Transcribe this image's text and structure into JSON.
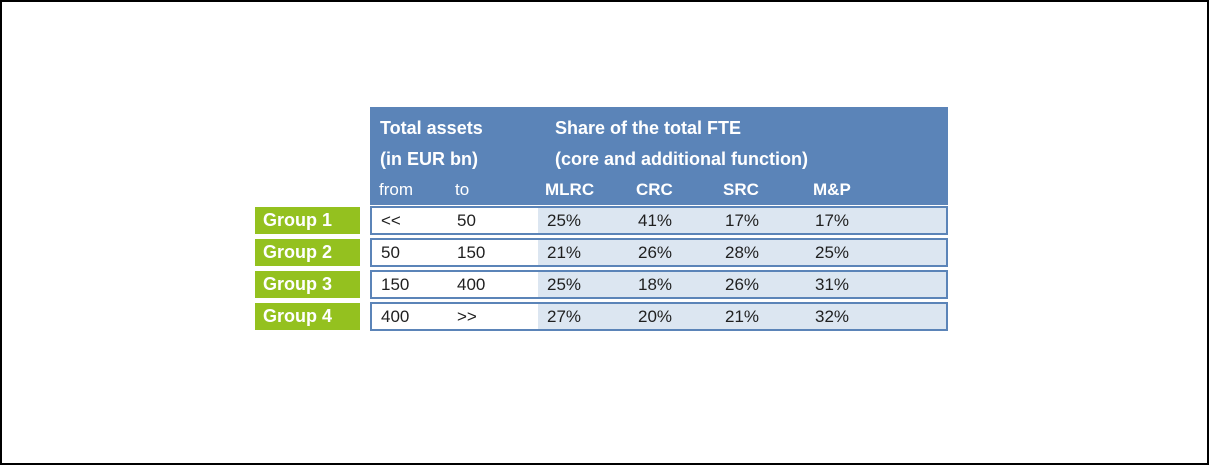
{
  "frame": {
    "background": "#ffffff",
    "border_color": "#000000"
  },
  "table": {
    "header": {
      "assets_title": "Total assets",
      "assets_subtitle": "(in EUR bn)",
      "fte_title": "Share of the total FTE",
      "fte_subtitle": "(core and additional function)",
      "from_label": "from",
      "to_label": "to",
      "fte_columns": [
        "MLRC",
        "CRC",
        "SRC",
        "M&P"
      ]
    },
    "rows": [
      {
        "label": "Group 1",
        "from": "<<",
        "to": "50",
        "values": [
          "25%",
          "41%",
          "17%",
          "17%"
        ]
      },
      {
        "label": "Group 2",
        "from": "50",
        "to": "150",
        "values": [
          "21%",
          "26%",
          "28%",
          "25%"
        ]
      },
      {
        "label": "Group 3",
        "from": "150",
        "to": "400",
        "values": [
          "25%",
          "18%",
          "26%",
          "31%"
        ]
      },
      {
        "label": "Group 4",
        "from": "400",
        "to": ">>",
        "values": [
          "27%",
          "20%",
          "21%",
          "32%"
        ]
      }
    ],
    "colors": {
      "header_bg": "#5b84b8",
      "header_text": "#ffffff",
      "cell_bg": "#dce6f1",
      "row_border": "#5b84b8",
      "label_bg": "#94c11f",
      "text": "#1f1f1f"
    }
  },
  "chart_data": {
    "type": "table",
    "title": "Share of the total FTE (core and additional function) by total assets group",
    "columns": [
      "Group",
      "Total assets from (EUR bn)",
      "Total assets to (EUR bn)",
      "MLRC",
      "CRC",
      "SRC",
      "M&P"
    ],
    "rows": [
      [
        "Group 1",
        "<<",
        "50",
        "25%",
        "41%",
        "17%",
        "17%"
      ],
      [
        "Group 2",
        "50",
        "150",
        "21%",
        "26%",
        "28%",
        "25%"
      ],
      [
        "Group 3",
        "150",
        "400",
        "25%",
        "18%",
        "26%",
        "31%"
      ],
      [
        "Group 4",
        "400",
        ">>",
        "27%",
        "20%",
        "21%",
        "32%"
      ]
    ]
  }
}
